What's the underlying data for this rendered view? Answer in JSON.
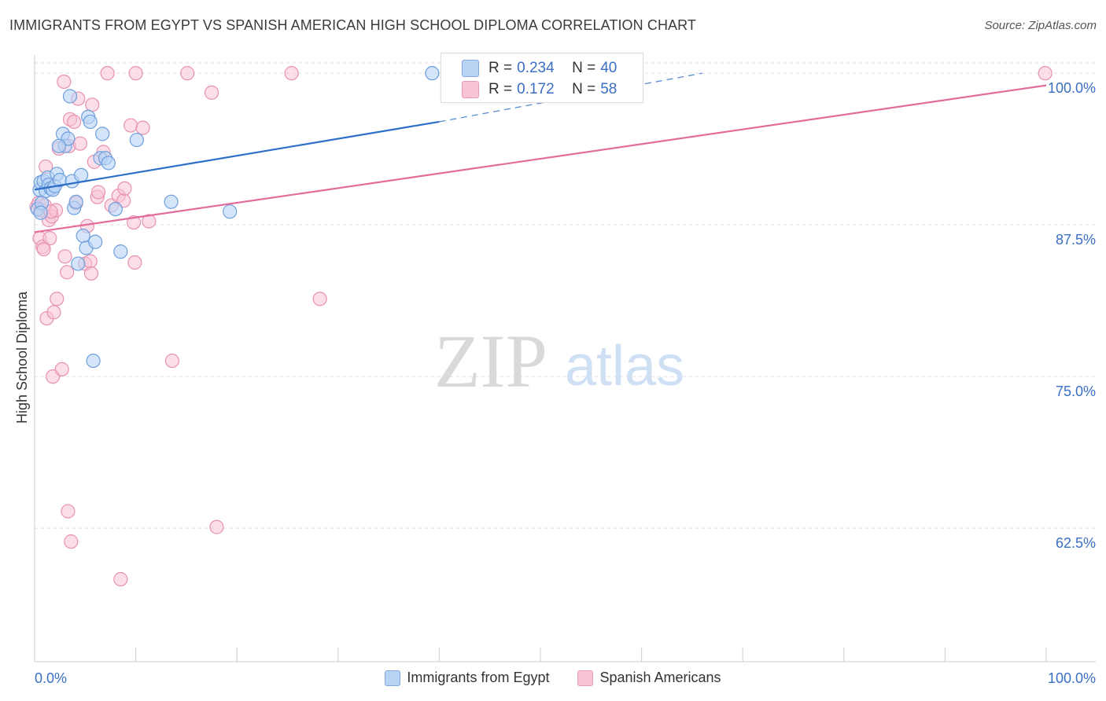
{
  "title": "IMMIGRANTS FROM EGYPT VS SPANISH AMERICAN HIGH SCHOOL DIPLOMA CORRELATION CHART",
  "source": "Source: ZipAtlas.com",
  "watermark": {
    "zip": "ZIP",
    "atlas": "atlas"
  },
  "colors": {
    "blue_fill": "#b9d3f5",
    "blue_stroke": "#6e9fdd",
    "blue_line": "#2d6fc7",
    "pink_fill": "#f8c3d5",
    "pink_stroke": "#e791b1",
    "pink_line": "#e26c9b",
    "axis_text": "#3a6fc4",
    "grid": "#e0e0e0"
  },
  "stats": {
    "egypt": {
      "r_label": "R =",
      "r_value": "0.234",
      "n_label": "N =",
      "n_value": "40"
    },
    "spanish": {
      "r_label": "R =",
      "r_value": "0.172",
      "n_label": "N =",
      "n_value": "58"
    }
  },
  "legend": {
    "egypt": "Immigrants from Egypt",
    "spanish": "Spanish Americans"
  },
  "chart_data": {
    "type": "scatter",
    "title": "IMMIGRANTS FROM EGYPT VS SPANISH AMERICAN HIGH SCHOOL DIPLOMA CORRELATION CHART",
    "xlabel": "",
    "ylabel": "High School Diploma",
    "xlim": [
      0,
      100
    ],
    "ylim": [
      51.5,
      101.5
    ],
    "x_tick_labels": {
      "left": "0.0%",
      "right": "100.0%"
    },
    "y_ticks": [
      {
        "value": 100,
        "label": "100.0%"
      },
      {
        "value": 87.5,
        "label": "87.5%"
      },
      {
        "value": 75,
        "label": "75.0%"
      },
      {
        "value": 62.5,
        "label": "62.5%"
      }
    ],
    "series": [
      {
        "name": "Immigrants from Egypt",
        "trend": {
          "x0": 0,
          "y0": 90.4,
          "x1": 40,
          "y1": 96.0,
          "dash_to_x": 66,
          "dash_to_y": 100
        },
        "points": [
          [
            0.3,
            88.8
          ],
          [
            0.5,
            90.4
          ],
          [
            0.6,
            91.0
          ],
          [
            0.7,
            89.3
          ],
          [
            0.9,
            91.1
          ],
          [
            1.1,
            90.3
          ],
          [
            1.3,
            91.4
          ],
          [
            1.4,
            90.8
          ],
          [
            1.6,
            90.5
          ],
          [
            1.8,
            90.4
          ],
          [
            2.0,
            90.7
          ],
          [
            2.2,
            91.7
          ],
          [
            2.5,
            91.2
          ],
          [
            2.8,
            95.0
          ],
          [
            3.0,
            94.0
          ],
          [
            3.3,
            94.6
          ],
          [
            3.5,
            98.1
          ],
          [
            3.7,
            91.1
          ],
          [
            3.9,
            88.9
          ],
          [
            4.1,
            89.4
          ],
          [
            4.3,
            84.3
          ],
          [
            4.6,
            91.6
          ],
          [
            4.8,
            86.6
          ],
          [
            5.1,
            85.6
          ],
          [
            5.3,
            96.4
          ],
          [
            5.5,
            96.0
          ],
          [
            5.8,
            76.3
          ],
          [
            6.0,
            86.1
          ],
          [
            6.5,
            93.0
          ],
          [
            6.7,
            95.0
          ],
          [
            7.0,
            93.0
          ],
          [
            7.3,
            92.6
          ],
          [
            8.0,
            88.8
          ],
          [
            8.5,
            85.3
          ],
          [
            10.1,
            94.5
          ],
          [
            13.5,
            89.4
          ],
          [
            19.3,
            88.6
          ],
          [
            39.3,
            100.0
          ],
          [
            0.6,
            88.5
          ],
          [
            2.4,
            94.0
          ]
        ]
      },
      {
        "name": "Spanish Americans",
        "trend": {
          "x0": 0,
          "y0": 86.9,
          "x1": 100,
          "y1": 99.0
        },
        "points": [
          [
            0.2,
            89.0
          ],
          [
            0.4,
            89.3
          ],
          [
            0.5,
            86.4
          ],
          [
            0.6,
            88.7
          ],
          [
            0.8,
            85.7
          ],
          [
            1.0,
            89.1
          ],
          [
            1.1,
            92.3
          ],
          [
            1.2,
            79.8
          ],
          [
            1.4,
            87.9
          ],
          [
            1.5,
            86.4
          ],
          [
            1.7,
            88.2
          ],
          [
            1.8,
            75.0
          ],
          [
            1.9,
            80.3
          ],
          [
            2.1,
            88.7
          ],
          [
            2.2,
            81.4
          ],
          [
            2.4,
            93.8
          ],
          [
            2.7,
            75.6
          ],
          [
            2.9,
            99.3
          ],
          [
            3.0,
            84.9
          ],
          [
            3.2,
            83.6
          ],
          [
            3.3,
            63.9
          ],
          [
            3.4,
            94.0
          ],
          [
            3.5,
            96.2
          ],
          [
            3.6,
            61.4
          ],
          [
            3.9,
            96.0
          ],
          [
            4.1,
            89.3
          ],
          [
            4.3,
            97.9
          ],
          [
            4.5,
            94.2
          ],
          [
            5.0,
            84.3
          ],
          [
            5.2,
            87.4
          ],
          [
            5.5,
            84.5
          ],
          [
            5.6,
            83.5
          ],
          [
            5.7,
            97.4
          ],
          [
            5.9,
            92.7
          ],
          [
            6.2,
            89.8
          ],
          [
            6.3,
            90.2
          ],
          [
            6.8,
            93.5
          ],
          [
            7.2,
            100.0
          ],
          [
            7.6,
            89.1
          ],
          [
            8.3,
            89.9
          ],
          [
            8.5,
            58.3
          ],
          [
            8.8,
            89.5
          ],
          [
            8.9,
            90.5
          ],
          [
            9.5,
            95.7
          ],
          [
            9.8,
            87.7
          ],
          [
            9.9,
            84.4
          ],
          [
            10.0,
            100.0
          ],
          [
            10.7,
            95.5
          ],
          [
            11.3,
            87.8
          ],
          [
            13.6,
            76.3
          ],
          [
            15.1,
            100.0
          ],
          [
            17.5,
            98.4
          ],
          [
            18.0,
            62.6
          ],
          [
            25.4,
            100.0
          ],
          [
            28.2,
            81.4
          ],
          [
            99.9,
            100.0
          ],
          [
            0.9,
            85.5
          ],
          [
            1.6,
            88.6
          ]
        ]
      }
    ]
  }
}
